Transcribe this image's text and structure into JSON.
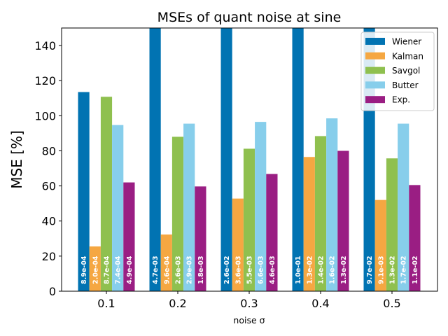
{
  "chart_data": {
    "type": "bar",
    "title": "MSEs of quant noise at sine",
    "xlabel": "noise σ",
    "ylabel": "MSE [%]",
    "categories": [
      "0.1",
      "0.2",
      "0.3",
      "0.4",
      "0.5"
    ],
    "ylim": [
      0,
      150
    ],
    "yticks": [
      0,
      20,
      40,
      60,
      80,
      100,
      120,
      140
    ],
    "grid": false,
    "legend_position": "top-right",
    "series": [
      {
        "name": "Wiener",
        "color": "#0173b2",
        "values": [
          113.5,
          150,
          150,
          150,
          150
        ],
        "labels": [
          "8.9e-04",
          "4.7e-03",
          "2.6e-02",
          "1.0e-01",
          "9.7e-02"
        ]
      },
      {
        "name": "Kalman",
        "color": "#f5a742",
        "values": [
          25.5,
          32.3,
          52.8,
          76.5,
          52.0
        ],
        "labels": [
          "2.0e-04",
          "9.6e-04",
          "3.6e-03",
          "1.3e-02",
          "9.1e-03"
        ]
      },
      {
        "name": "Savgol",
        "color": "#8fc04f",
        "values": [
          110.8,
          88.0,
          81.2,
          88.4,
          75.7
        ],
        "labels": [
          "8.7e-04",
          "2.6e-03",
          "5.5e-03",
          "1.4e-02",
          "1.3e-02"
        ]
      },
      {
        "name": "Butter",
        "color": "#87ceeb",
        "values": [
          94.7,
          95.5,
          96.5,
          98.5,
          95.5
        ],
        "labels": [
          "7.4e-04",
          "2.9e-03",
          "6.6e-03",
          "1.6e-02",
          "1.7e-02"
        ]
      },
      {
        "name": "Exp.",
        "color": "#9a1e83",
        "values": [
          62.0,
          59.7,
          66.8,
          80.0,
          60.5
        ],
        "labels": [
          "4.9e-04",
          "1.8e-03",
          "4.6e-03",
          "1.3e-02",
          "1.1e-02"
        ]
      }
    ]
  }
}
